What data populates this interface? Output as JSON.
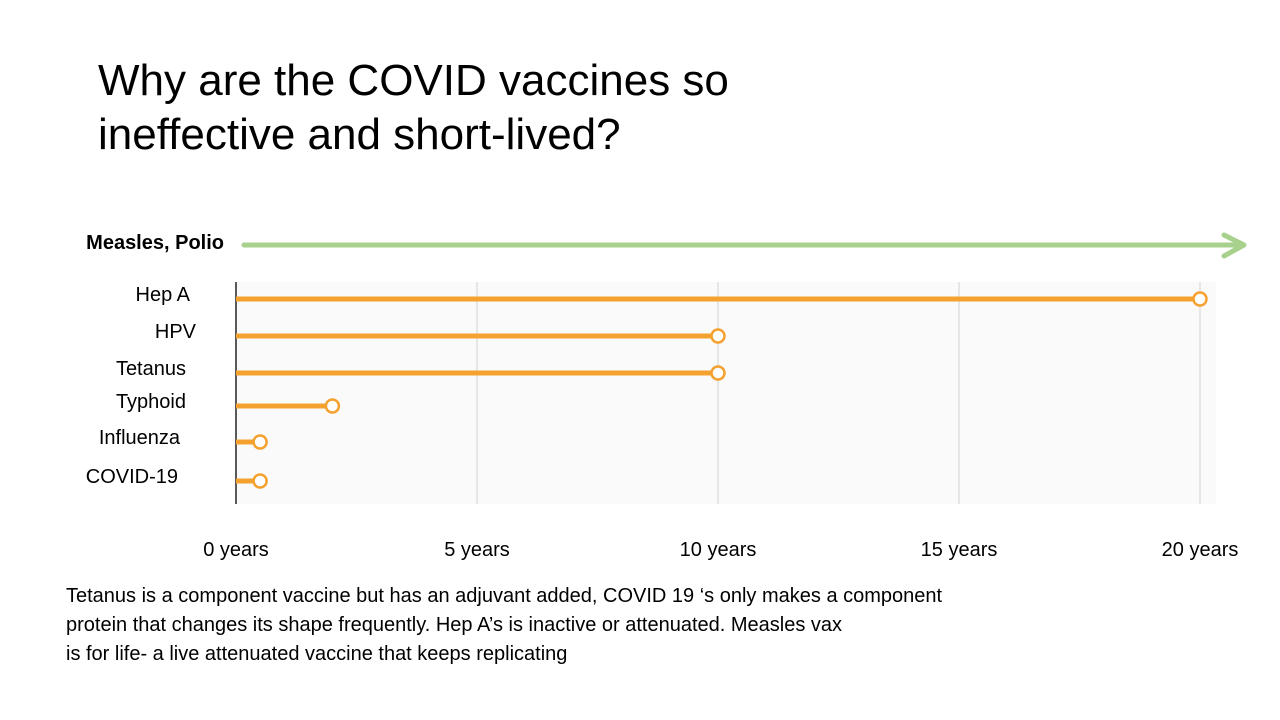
{
  "slide": {
    "title_lines": [
      "Why are the COVID vaccines so",
      "ineffective and short-lived?"
    ],
    "note_lines": [
      "Tetanus is a component vaccine but has an adjuvant added, COVID 19 ‘s only makes a  component",
      "protein that changes its shape frequently.  Hep A’s is inactive or attenuated. Measles vax",
      "is for life- a live attenuated vaccine that keeps replicating"
    ]
  },
  "chart_data": {
    "type": "bar",
    "orientation": "horizontal",
    "style": "lollipop",
    "top_arrow": {
      "label": "Measles, Polio",
      "meaning": "lifelong",
      "color": "#a9d18e"
    },
    "categories": [
      "Hep A",
      "HPV",
      "Tetanus",
      "Typhoid",
      "Influenza",
      "COVID-19"
    ],
    "values": [
      20,
      10,
      10,
      2,
      0.5,
      0.5
    ],
    "xlim": [
      0,
      20
    ],
    "x_ticks": [
      0,
      5,
      10,
      15,
      20
    ],
    "x_tick_labels": [
      "0 years",
      "5 years",
      "10 years",
      "15 years",
      "20 years"
    ],
    "grid": true,
    "bar_color": "#f4a12f",
    "grid_color": "#e0e0e0",
    "plot_background": "#fafafa",
    "title": "",
    "xlabel": "",
    "ylabel": ""
  }
}
